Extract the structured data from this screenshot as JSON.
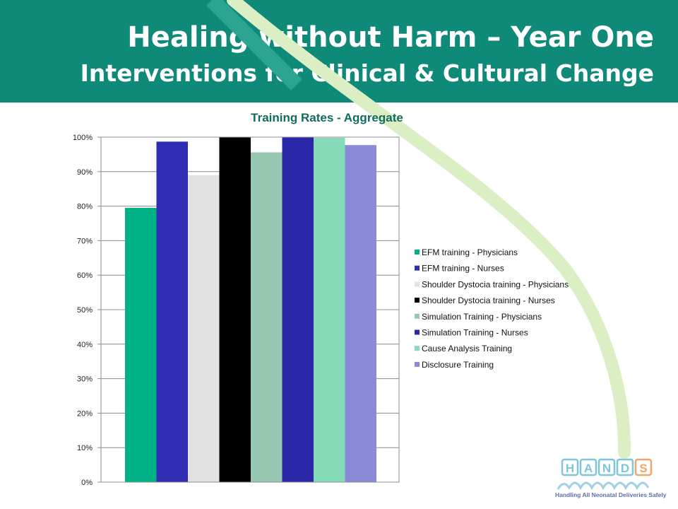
{
  "header": {
    "title": "Healing without Harm – Year One",
    "subtitle": "Interventions for Clinical & Cultural Change"
  },
  "logo": {
    "letters": [
      "H",
      "A",
      "N",
      "D",
      "S"
    ],
    "tagline": "Handling All Neonatal Deliveries Safely"
  },
  "chart_data": {
    "type": "bar",
    "title": "Training Rates - Aggregate",
    "xlabel": "",
    "ylabel": "",
    "ylim": [
      0,
      100
    ],
    "y_ticks": [
      "0%",
      "10%",
      "20%",
      "30%",
      "40%",
      "50%",
      "60%",
      "70%",
      "80%",
      "90%",
      "100%"
    ],
    "grid": true,
    "legend_position": "right",
    "series": [
      {
        "name": "EFM training - Physicians",
        "value": 79.5,
        "color": "#00b386"
      },
      {
        "name": "EFM training - Nurses",
        "value": 98.7,
        "color": "#2e2db3"
      },
      {
        "name": "Shoulder Dystocia training - Physicians",
        "value": 89,
        "color": "#e2e2e2"
      },
      {
        "name": "Shoulder Dystocia training - Nurses",
        "value": 100,
        "color": "#000000"
      },
      {
        "name": "Simulation Training - Physicians",
        "value": 95.6,
        "color": "#96c8b2"
      },
      {
        "name": "Simulation Training - Nurses",
        "value": 100,
        "color": "#2a27a8"
      },
      {
        "name": "Cause Analysis Training",
        "value": 99.8,
        "color": "#86dcb8"
      },
      {
        "name": "Disclosure Training",
        "value": 97.7,
        "color": "#8a8ad8"
      }
    ]
  }
}
